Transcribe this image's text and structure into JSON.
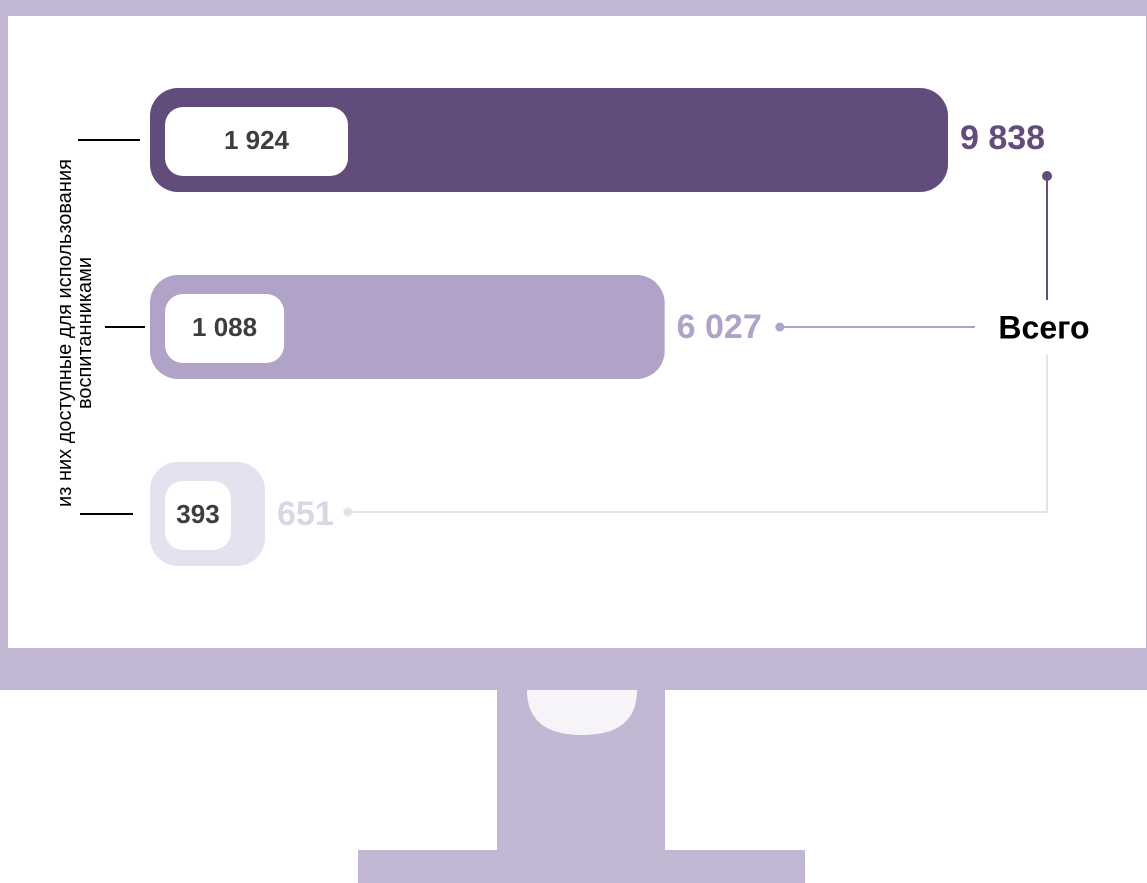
{
  "chart_data": {
    "type": "bar",
    "axis_label": "из них доступные для использования воспитанниками",
    "annotation": "Всего",
    "values": [
      9838,
      6027,
      651
    ],
    "value_labels": [
      "9 838",
      "6 027",
      "651"
    ],
    "inner_values": [
      1924,
      1088,
      393
    ],
    "inner_value_labels": [
      "1 924",
      "1 088",
      "393"
    ],
    "colors": [
      "#614c7b",
      "#b1a2c8",
      "#e6e1ee"
    ],
    "label_colors": [
      "#614c7b",
      "#b1a2c8",
      "#dcd5e6"
    ]
  }
}
